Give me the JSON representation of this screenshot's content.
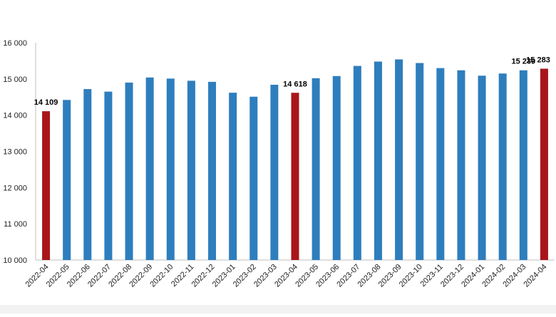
{
  "chart_data": {
    "type": "bar",
    "categories": [
      "2022-04",
      "2022-05",
      "2022-06",
      "2022-07",
      "2022-08",
      "2022-09",
      "2022-10",
      "2022-11",
      "2022-12",
      "2023-01",
      "2023-02",
      "2023-03",
      "2023-04",
      "2023-05",
      "2023-06",
      "2023-07",
      "2023-08",
      "2023-09",
      "2023-10",
      "2023-11",
      "2023-12",
      "2024-01",
      "2024-02",
      "2024-03",
      "2024-04"
    ],
    "values": [
      14109,
      14420,
      14720,
      14650,
      14900,
      15040,
      15010,
      14950,
      14920,
      14620,
      14510,
      14840,
      14618,
      15020,
      15080,
      15360,
      15480,
      15540,
      15440,
      15300,
      15240,
      15090,
      15150,
      15239,
      15283
    ],
    "highlighted": [
      "2022-04",
      "2023-04",
      "2024-04"
    ],
    "data_labels": [
      {
        "category": "2022-04",
        "text": "14 109"
      },
      {
        "category": "2023-04",
        "text": "14 618"
      },
      {
        "category": "2024-03",
        "text": "15 239"
      },
      {
        "category": "2024-04",
        "text": "15 283"
      }
    ],
    "y_ticks": [
      {
        "value": 10000,
        "label": "10 000"
      },
      {
        "value": 11000,
        "label": "11 000"
      },
      {
        "value": 12000,
        "label": "12 000"
      },
      {
        "value": 13000,
        "label": "13 000"
      },
      {
        "value": 14000,
        "label": "14 000"
      },
      {
        "value": 15000,
        "label": "15 000"
      },
      {
        "value": 16000,
        "label": "16 000"
      }
    ],
    "ylim": [
      10000,
      16000
    ],
    "title": "",
    "xlabel": "",
    "ylabel": "",
    "grid": false,
    "legend": "none",
    "colors": {
      "bar": "#2e7ebd",
      "highlight": "#a8161b",
      "axis": "#bfbfbf"
    }
  }
}
